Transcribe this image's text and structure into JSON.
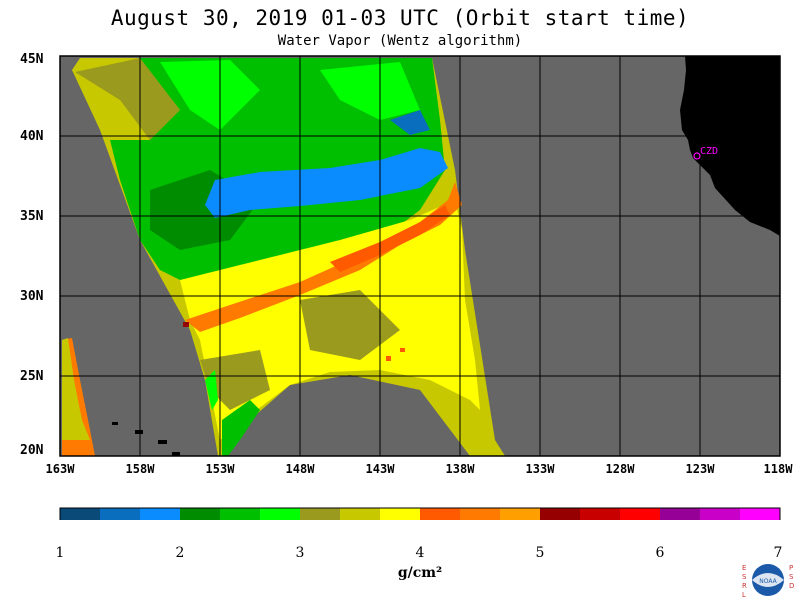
{
  "header": {
    "title": "August 30, 2019  01-03 UTC  (Orbit start time)",
    "subtitle": "Water Vapor (Wentz algorithm)"
  },
  "map": {
    "extent": {
      "lon_min": -163,
      "lon_max": -118,
      "lat_min": 20,
      "lat_max": 45
    },
    "lat_labels": [
      "45N",
      "40N",
      "35N",
      "30N",
      "25N",
      "20N"
    ],
    "lon_labels": [
      "163W",
      "158W",
      "153W",
      "148W",
      "143W",
      "138W",
      "133W",
      "128W",
      "123W",
      "118W"
    ],
    "colors": {
      "no_data": "#666666",
      "land": "#000000",
      "grid": "#000000"
    },
    "place_label": "CZD"
  },
  "colorbar": {
    "colors": [
      "#0a4a78",
      "#0a6ebe",
      "#0a8cff",
      "#008c00",
      "#00be00",
      "#00ff00",
      "#9a9a1e",
      "#c8c800",
      "#ffff00",
      "#ff5a00",
      "#ff7a00",
      "#ffa000",
      "#960000",
      "#c80000",
      "#ff0000",
      "#960096",
      "#c800c8",
      "#ff00ff"
    ],
    "ticks": [
      "1",
      "2",
      "3",
      "4",
      "5",
      "6",
      "7"
    ],
    "unit": "g/cm²"
  },
  "logo": {
    "left_text": "ESRL",
    "right_text": "PSD",
    "center_text": "NOAA"
  }
}
